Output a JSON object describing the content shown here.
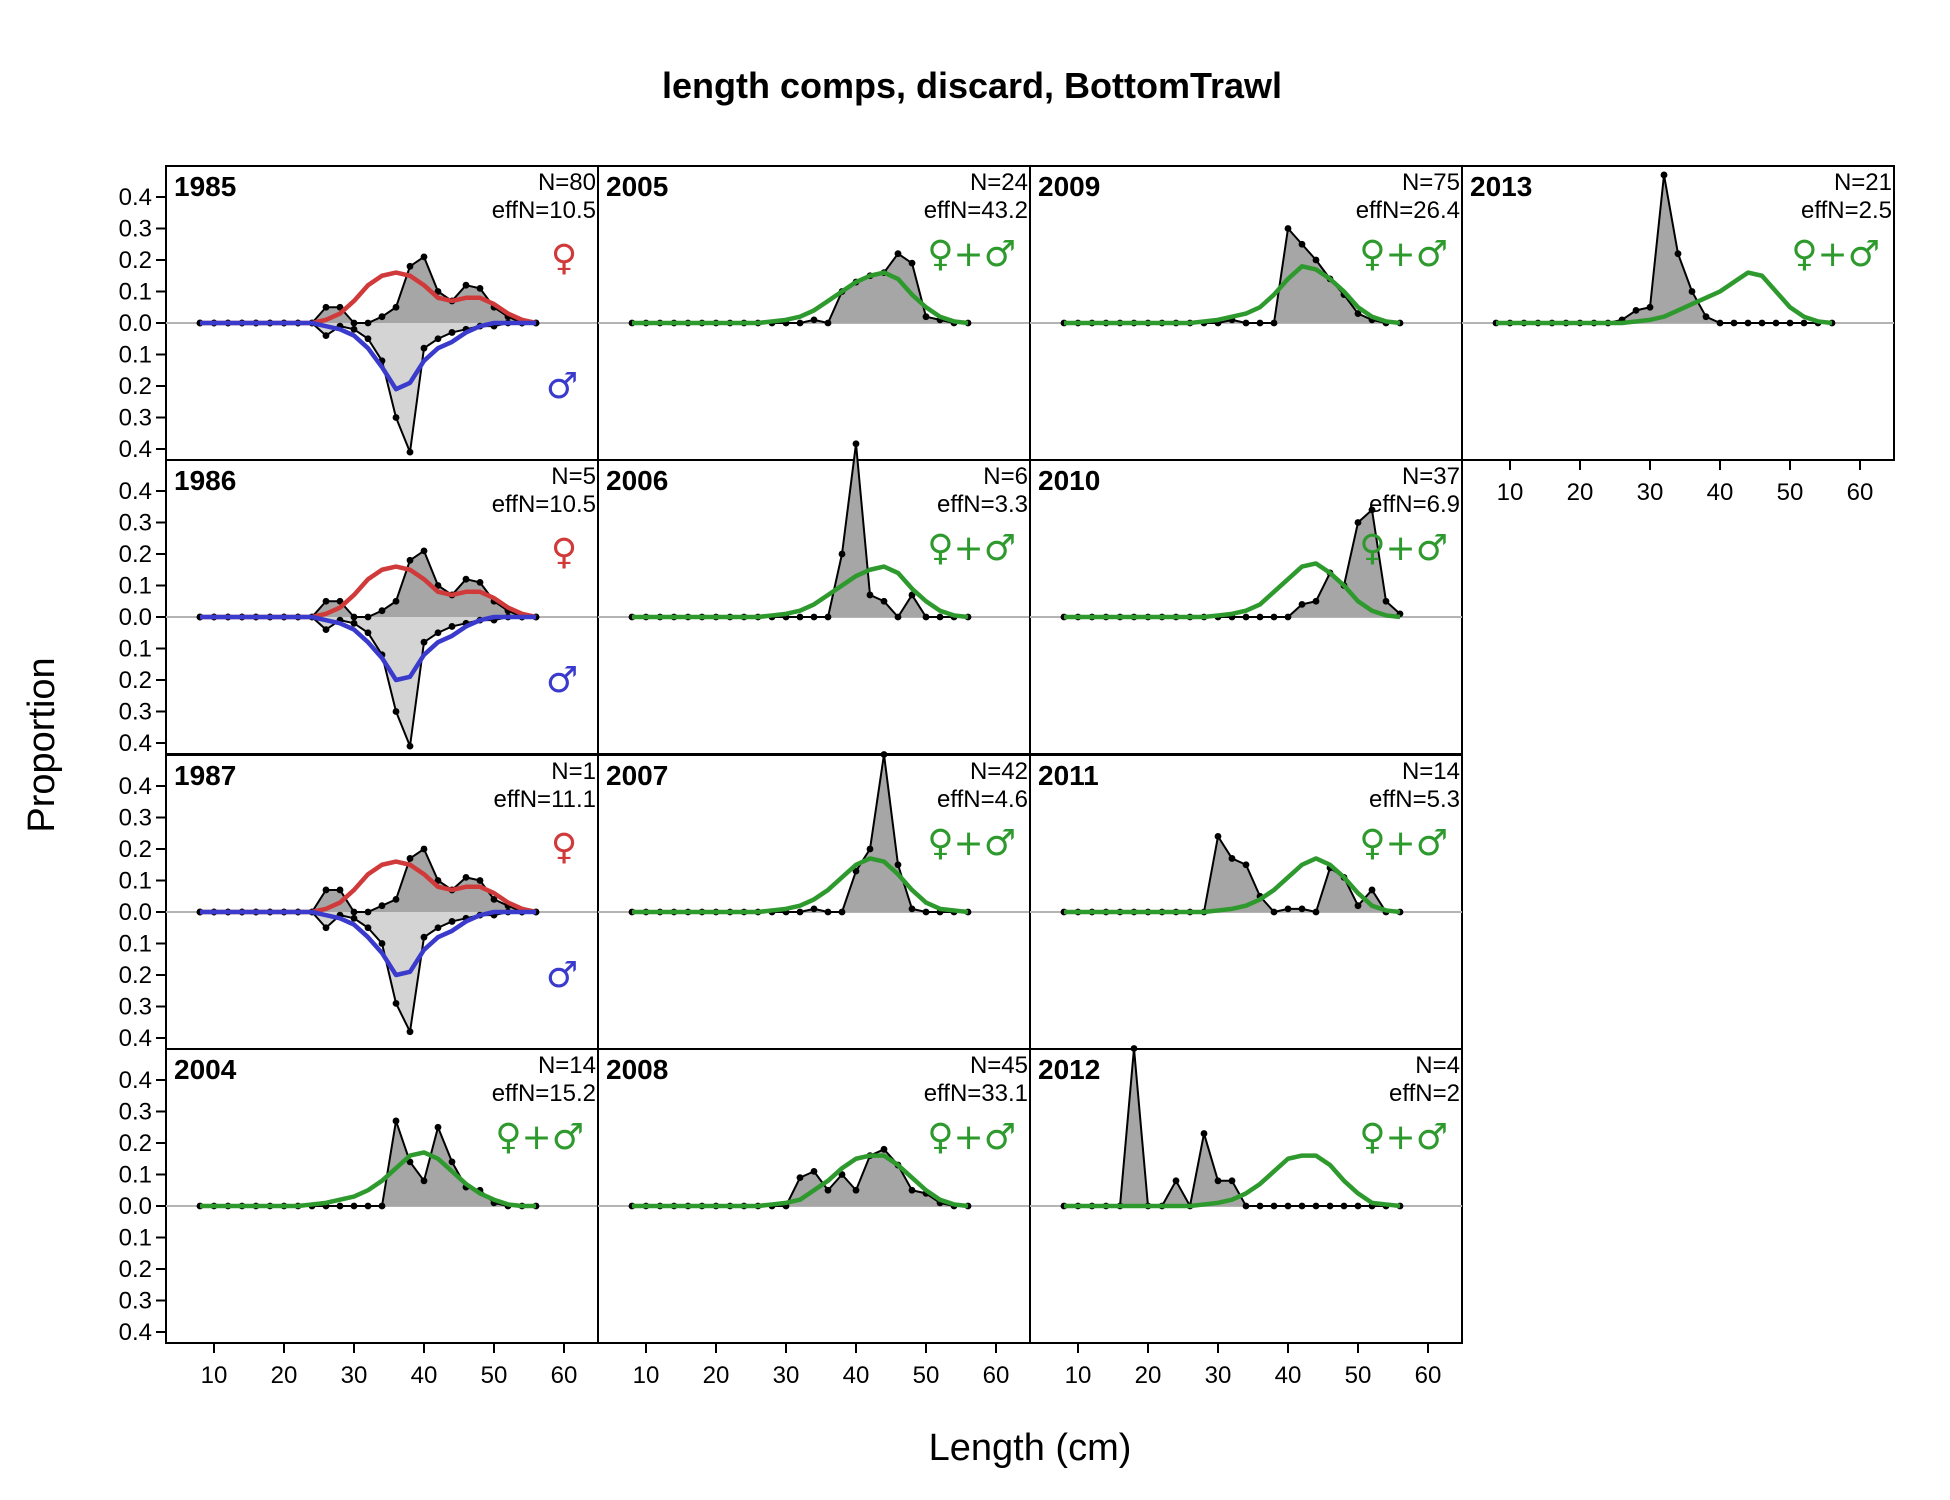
{
  "chart_data": {
    "type": "area",
    "title": "length comps, discard, BottomTrawl",
    "xlabel": "Length (cm)",
    "ylabel": "Proportion",
    "xlim": [
      8,
      60
    ],
    "xticks": [
      10,
      20,
      30,
      40,
      50,
      60
    ],
    "yticks_up": [
      "0.0",
      "0.1",
      "0.2",
      "0.3",
      "0.4"
    ],
    "yticks_down": [
      "0.1",
      "0.2",
      "0.3",
      "0.4"
    ],
    "bins": [
      8,
      10,
      12,
      14,
      16,
      18,
      20,
      22,
      24,
      26,
      28,
      30,
      32,
      34,
      36,
      38,
      40,
      42,
      44,
      46,
      48,
      50,
      52,
      54,
      56
    ],
    "colors": {
      "female": "#d03a3a",
      "male": "#3a3acc",
      "combined": "#2e9a2e",
      "fill_female": "#a6a6a6",
      "fill_male": "#d4d4d4"
    },
    "symbols": {
      "female": "♀",
      "male": "♂",
      "combined": "♀+♂"
    },
    "panels": [
      {
        "year": "1985",
        "n_label": "N=80",
        "effn_label": "effN=10.5",
        "by_sex": true,
        "obs_f": [
          0,
          0,
          0,
          0,
          0,
          0,
          0,
          0,
          0,
          0.05,
          0.05,
          0,
          0,
          0.02,
          0.05,
          0.18,
          0.21,
          0.1,
          0.07,
          0.12,
          0.11,
          0.05,
          0.02,
          0,
          0
        ],
        "exp_f": [
          0,
          0,
          0,
          0,
          0,
          0,
          0,
          0,
          0,
          0.01,
          0.03,
          0.07,
          0.12,
          0.15,
          0.16,
          0.15,
          0.12,
          0.08,
          0.07,
          0.08,
          0.08,
          0.06,
          0.03,
          0.01,
          0
        ],
        "obs_m": [
          0,
          0,
          0,
          0,
          0,
          0,
          0,
          0,
          0,
          0.04,
          0.01,
          0.02,
          0.05,
          0.12,
          0.3,
          0.41,
          0.08,
          0.05,
          0.03,
          0.02,
          0.01,
          0.01,
          0,
          0,
          0
        ],
        "exp_m": [
          0,
          0,
          0,
          0,
          0,
          0,
          0,
          0,
          0,
          0.01,
          0.02,
          0.04,
          0.08,
          0.14,
          0.21,
          0.19,
          0.12,
          0.08,
          0.06,
          0.03,
          0.01,
          0,
          0,
          0,
          0
        ]
      },
      {
        "year": "1986",
        "n_label": "N=5",
        "effn_label": "effN=10.5",
        "by_sex": true,
        "obs_f": [
          0,
          0,
          0,
          0,
          0,
          0,
          0,
          0,
          0,
          0.05,
          0.05,
          0,
          0,
          0.02,
          0.05,
          0.18,
          0.21,
          0.1,
          0.07,
          0.12,
          0.11,
          0.05,
          0.02,
          0,
          0
        ],
        "exp_f": [
          0,
          0,
          0,
          0,
          0,
          0,
          0,
          0,
          0,
          0.01,
          0.03,
          0.07,
          0.12,
          0.15,
          0.16,
          0.15,
          0.12,
          0.08,
          0.07,
          0.08,
          0.08,
          0.06,
          0.03,
          0.01,
          0
        ],
        "obs_m": [
          0,
          0,
          0,
          0,
          0,
          0,
          0,
          0,
          0,
          0.04,
          0.01,
          0.02,
          0.05,
          0.12,
          0.3,
          0.41,
          0.08,
          0.05,
          0.03,
          0.02,
          0.01,
          0.01,
          0,
          0,
          0
        ],
        "exp_m": [
          0,
          0,
          0,
          0,
          0,
          0,
          0,
          0,
          0,
          0.01,
          0.02,
          0.04,
          0.08,
          0.13,
          0.2,
          0.19,
          0.12,
          0.08,
          0.06,
          0.03,
          0.01,
          0,
          0,
          0,
          0
        ]
      },
      {
        "year": "1987",
        "n_label": "N=1",
        "effn_label": "effN=11.1",
        "by_sex": true,
        "obs_f": [
          0,
          0,
          0,
          0,
          0,
          0,
          0,
          0,
          0,
          0.07,
          0.07,
          0,
          0,
          0.02,
          0.04,
          0.17,
          0.2,
          0.1,
          0.07,
          0.11,
          0.1,
          0.04,
          0.02,
          0,
          0
        ],
        "exp_f": [
          0,
          0,
          0,
          0,
          0,
          0,
          0,
          0,
          0,
          0.01,
          0.03,
          0.07,
          0.12,
          0.15,
          0.16,
          0.15,
          0.12,
          0.08,
          0.07,
          0.08,
          0.08,
          0.06,
          0.03,
          0.01,
          0
        ],
        "obs_m": [
          0,
          0,
          0,
          0,
          0,
          0,
          0,
          0,
          0,
          0.05,
          0.01,
          0.02,
          0.05,
          0.1,
          0.29,
          0.38,
          0.08,
          0.05,
          0.03,
          0.02,
          0.01,
          0.01,
          0,
          0,
          0
        ],
        "exp_m": [
          0,
          0,
          0,
          0,
          0,
          0,
          0,
          0,
          0,
          0.01,
          0.02,
          0.04,
          0.08,
          0.13,
          0.2,
          0.19,
          0.12,
          0.08,
          0.06,
          0.03,
          0.01,
          0,
          0,
          0,
          0
        ]
      },
      {
        "year": "2004",
        "n_label": "N=14",
        "effn_label": "effN=15.2",
        "by_sex": false,
        "obs": [
          0,
          0,
          0,
          0,
          0,
          0,
          0,
          0,
          0,
          0,
          0,
          0,
          0,
          0,
          0.27,
          0.14,
          0.08,
          0.25,
          0.14,
          0.06,
          0.05,
          0.01,
          0,
          0,
          0
        ],
        "exp": [
          0,
          0,
          0,
          0,
          0,
          0,
          0,
          0,
          0.005,
          0.01,
          0.02,
          0.03,
          0.05,
          0.08,
          0.12,
          0.16,
          0.17,
          0.15,
          0.11,
          0.07,
          0.04,
          0.02,
          0.005,
          0,
          0
        ]
      },
      {
        "year": "2005",
        "n_label": "N=24",
        "effn_label": "effN=43.2",
        "by_sex": false,
        "obs": [
          0,
          0,
          0,
          0,
          0,
          0,
          0,
          0,
          0,
          0,
          0,
          0,
          0,
          0.01,
          0,
          0.1,
          0.13,
          0.15,
          0.16,
          0.22,
          0.19,
          0.02,
          0.01,
          0,
          0
        ],
        "exp": [
          0,
          0,
          0,
          0,
          0,
          0,
          0,
          0,
          0,
          0,
          0.005,
          0.01,
          0.02,
          0.04,
          0.07,
          0.1,
          0.13,
          0.15,
          0.16,
          0.14,
          0.09,
          0.05,
          0.02,
          0.005,
          0
        ]
      },
      {
        "year": "2006",
        "n_label": "N=6",
        "effn_label": "effN=3.3",
        "by_sex": false,
        "obs": [
          0,
          0,
          0,
          0,
          0,
          0,
          0,
          0,
          0,
          0,
          0,
          0,
          0,
          0,
          0,
          0.2,
          0.55,
          0.07,
          0.05,
          0,
          0.07,
          0,
          0,
          0,
          0
        ],
        "exp": [
          0,
          0,
          0,
          0,
          0,
          0,
          0,
          0,
          0,
          0,
          0.005,
          0.01,
          0.02,
          0.04,
          0.07,
          0.1,
          0.13,
          0.15,
          0.16,
          0.14,
          0.09,
          0.05,
          0.02,
          0.005,
          0
        ]
      },
      {
        "year": "2007",
        "n_label": "N=42",
        "effn_label": "effN=4.6",
        "by_sex": false,
        "obs": [
          0,
          0,
          0,
          0,
          0,
          0,
          0,
          0,
          0,
          0,
          0,
          0,
          0,
          0.01,
          0,
          0,
          0.13,
          0.2,
          0.5,
          0.15,
          0.01,
          0,
          0,
          0,
          0
        ],
        "exp": [
          0,
          0,
          0,
          0,
          0,
          0,
          0,
          0,
          0,
          0,
          0.005,
          0.01,
          0.02,
          0.04,
          0.07,
          0.11,
          0.15,
          0.17,
          0.16,
          0.12,
          0.07,
          0.03,
          0.01,
          0.005,
          0
        ]
      },
      {
        "year": "2008",
        "n_label": "N=45",
        "effn_label": "effN=33.1",
        "by_sex": false,
        "obs": [
          0,
          0,
          0,
          0,
          0,
          0,
          0,
          0,
          0,
          0,
          0,
          0,
          0.09,
          0.11,
          0.05,
          0.1,
          0.05,
          0.16,
          0.18,
          0.13,
          0.05,
          0.04,
          0.01,
          0,
          0
        ],
        "exp": [
          0,
          0,
          0,
          0,
          0,
          0,
          0,
          0,
          0,
          0,
          0.005,
          0.01,
          0.02,
          0.05,
          0.08,
          0.12,
          0.15,
          0.16,
          0.16,
          0.13,
          0.09,
          0.05,
          0.02,
          0.005,
          0
        ]
      },
      {
        "year": "2009",
        "n_label": "N=75",
        "effn_label": "effN=26.4",
        "by_sex": false,
        "obs": [
          0,
          0,
          0,
          0,
          0,
          0,
          0,
          0,
          0,
          0,
          0,
          0,
          0.01,
          0,
          0,
          0,
          0.3,
          0.25,
          0.2,
          0.14,
          0.09,
          0.03,
          0.01,
          0,
          0
        ],
        "exp": [
          0,
          0,
          0,
          0,
          0,
          0,
          0,
          0,
          0,
          0,
          0.005,
          0.01,
          0.02,
          0.03,
          0.05,
          0.09,
          0.14,
          0.18,
          0.17,
          0.14,
          0.1,
          0.05,
          0.02,
          0.005,
          0
        ]
      },
      {
        "year": "2010",
        "n_label": "N=37",
        "effn_label": "effN=6.9",
        "by_sex": false,
        "obs": [
          0,
          0,
          0,
          0,
          0,
          0,
          0,
          0,
          0,
          0,
          0,
          0,
          0,
          0,
          0,
          0,
          0,
          0.04,
          0.05,
          0.14,
          0.1,
          0.3,
          0.34,
          0.05,
          0.01
        ],
        "exp": [
          0,
          0,
          0,
          0,
          0,
          0,
          0,
          0,
          0,
          0,
          0,
          0.005,
          0.01,
          0.02,
          0.04,
          0.08,
          0.12,
          0.16,
          0.17,
          0.14,
          0.1,
          0.05,
          0.02,
          0.005,
          0
        ]
      },
      {
        "year": "2011",
        "n_label": "N=14",
        "effn_label": "effN=5.3",
        "by_sex": false,
        "obs": [
          0,
          0,
          0,
          0,
          0,
          0,
          0,
          0,
          0,
          0,
          0,
          0.24,
          0.17,
          0.15,
          0.05,
          0,
          0.01,
          0.01,
          0,
          0.14,
          0.11,
          0.02,
          0.07,
          0,
          0
        ],
        "exp": [
          0,
          0,
          0,
          0,
          0,
          0,
          0,
          0,
          0,
          0,
          0,
          0.005,
          0.01,
          0.02,
          0.04,
          0.07,
          0.11,
          0.15,
          0.17,
          0.15,
          0.11,
          0.06,
          0.02,
          0.005,
          0
        ]
      },
      {
        "year": "2012",
        "n_label": "N=4",
        "effn_label": "effN=2",
        "by_sex": false,
        "obs": [
          0,
          0,
          0,
          0,
          0,
          0.5,
          0,
          0,
          0.08,
          0,
          0.23,
          0.08,
          0.08,
          0,
          0,
          0,
          0,
          0,
          0,
          0,
          0,
          0,
          0,
          0,
          0
        ],
        "exp": [
          0,
          0,
          0,
          0,
          0,
          0,
          0,
          0,
          0,
          0,
          0.005,
          0.01,
          0.02,
          0.04,
          0.07,
          0.11,
          0.15,
          0.16,
          0.16,
          0.13,
          0.08,
          0.04,
          0.01,
          0.005,
          0
        ]
      },
      {
        "year": "2013",
        "n_label": "N=21",
        "effn_label": "effN=2.5",
        "by_sex": false,
        "obs": [
          0,
          0,
          0,
          0,
          0,
          0,
          0,
          0,
          0,
          0.01,
          0.04,
          0.05,
          0.47,
          0.22,
          0.1,
          0.02,
          0,
          0,
          0,
          0,
          0,
          0,
          0,
          0,
          0
        ],
        "exp": [
          0,
          0,
          0,
          0,
          0,
          0,
          0,
          0,
          0,
          0,
          0.005,
          0.01,
          0.02,
          0.04,
          0.06,
          0.08,
          0.1,
          0.13,
          0.16,
          0.15,
          0.1,
          0.05,
          0.02,
          0.005,
          0
        ]
      }
    ]
  }
}
